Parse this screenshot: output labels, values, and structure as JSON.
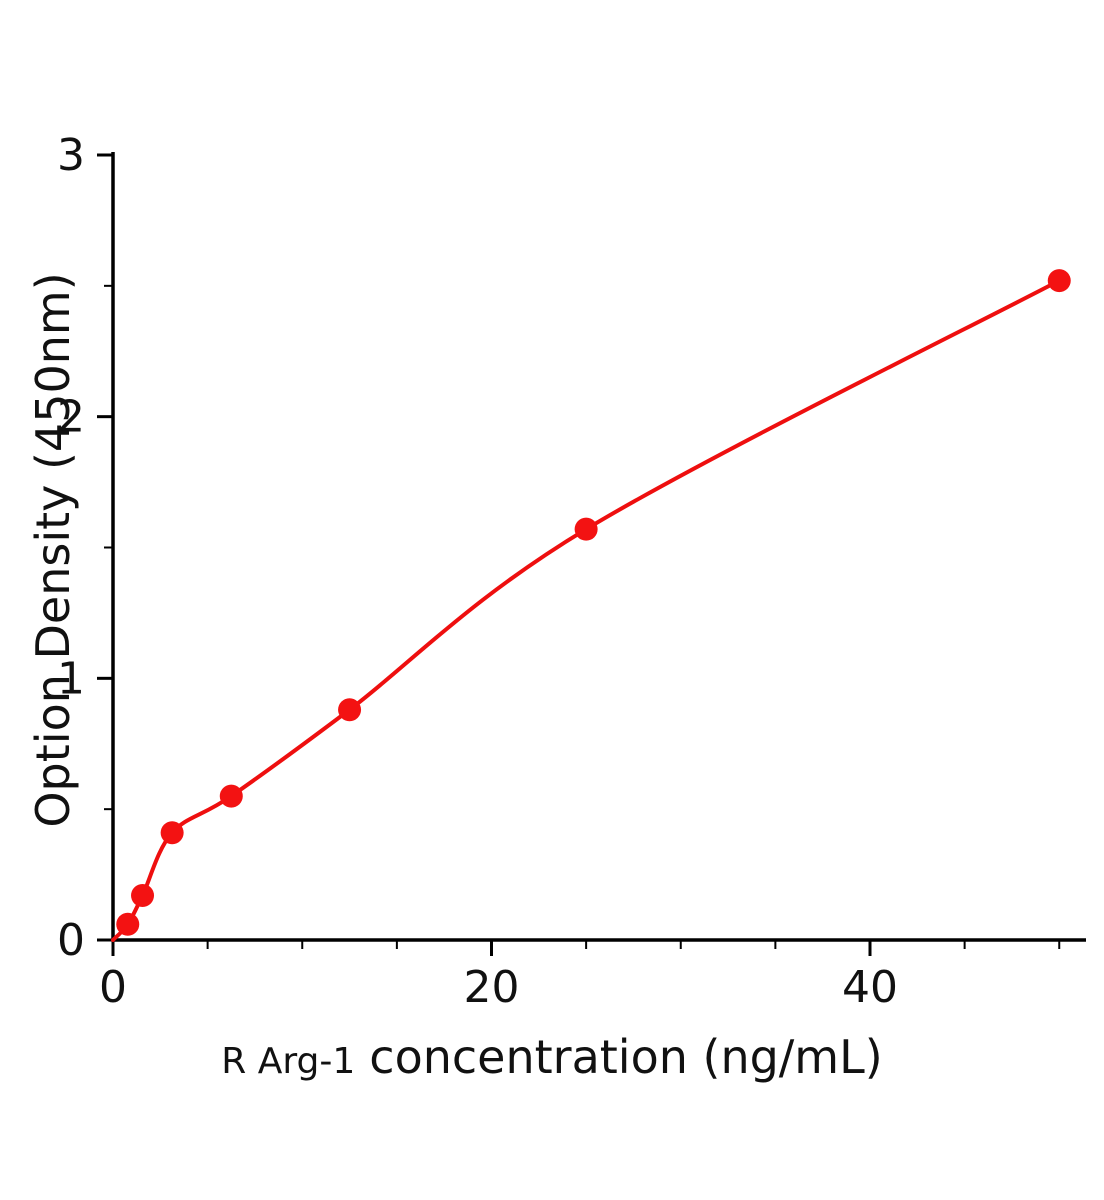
{
  "chart_data": {
    "type": "scatter",
    "title": "",
    "xlabel_prefix": "R Arg-1",
    "xlabel": "concentration (ng/mL)",
    "ylabel": "Option Density  (450nm)",
    "x": [
      0.78,
      1.56,
      3.125,
      6.25,
      12.5,
      25,
      50
    ],
    "y": [
      0.06,
      0.17,
      0.41,
      0.55,
      0.88,
      1.57,
      2.52
    ],
    "curve_through_origin": true,
    "xlim": [
      0,
      51.5
    ],
    "ylim": [
      0,
      3.05
    ],
    "x_major_ticks": [
      0,
      20,
      40
    ],
    "x_minor_step": 5,
    "x_minor_max": 50,
    "y_major_ticks": [
      0,
      1,
      2,
      3
    ],
    "y_minor_step": 0.5,
    "legend": "none",
    "grid": "off",
    "colors": {
      "point": "#f31212",
      "line": "#ee0f0f",
      "axis": "#000000",
      "text": "#111111"
    }
  }
}
